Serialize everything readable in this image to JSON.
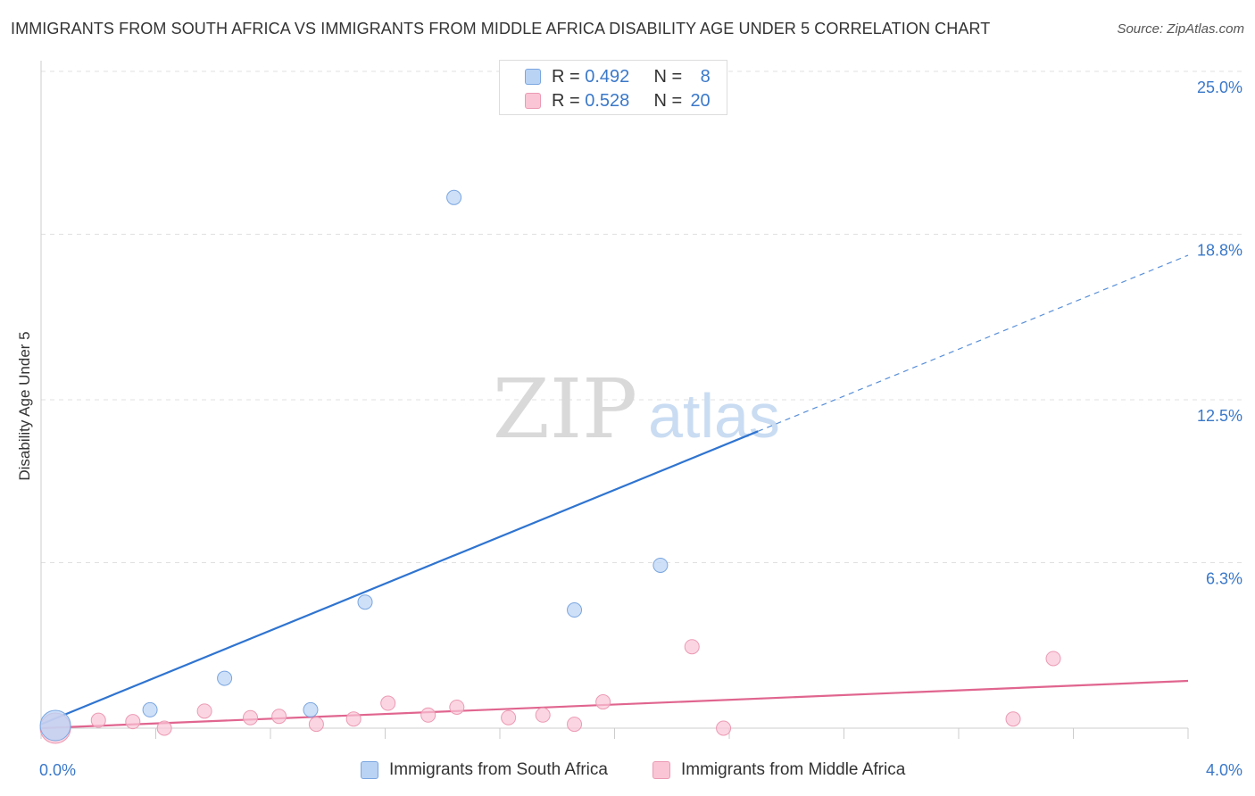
{
  "title": "IMMIGRANTS FROM SOUTH AFRICA VS IMMIGRANTS FROM MIDDLE AFRICA DISABILITY AGE UNDER 5 CORRELATION CHART",
  "source": "Source: ZipAtlas.com",
  "watermark": {
    "zip": "ZIP",
    "atlas": "atlas"
  },
  "legend": {
    "rows": [
      {
        "r_label": "R = ",
        "r_value": "0.492",
        "n_label": "N = ",
        "n_value": "8"
      },
      {
        "r_label": "R = ",
        "r_value": "0.528",
        "n_label": "N = ",
        "n_value": "20"
      }
    ]
  },
  "chart_data": {
    "type": "scatter",
    "title": "IMMIGRANTS FROM SOUTH AFRICA VS IMMIGRANTS FROM MIDDLE AFRICA DISABILITY AGE UNDER 5 CORRELATION CHART",
    "xlabel": "",
    "ylabel": "Disability Age Under 5",
    "xlim": [
      0,
      4.0
    ],
    "ylim": [
      0,
      25.0
    ],
    "x_tick_labels": [
      "0.0%",
      "4.0%"
    ],
    "y_ticks": [
      6.3,
      12.5,
      18.8,
      25.0
    ],
    "y_tick_labels": [
      "6.3%",
      "12.5%",
      "18.8%",
      "25.0%"
    ],
    "grid": true,
    "colors": {
      "south_africa_fill": "#b9d3f5",
      "south_africa_stroke": "#7aa6e0",
      "south_africa_line": "#2f74d0",
      "middle_africa_fill": "#fac5d5",
      "middle_africa_stroke": "#ec9ab4",
      "middle_africa_line": "#e0658f",
      "axis_label": "#3a78c9",
      "grid": "#e0e0e0"
    },
    "series": [
      {
        "name": "Immigrants from South Africa",
        "r": 0.492,
        "n": 8,
        "points": [
          {
            "x": 0.05,
            "y": 0.1,
            "big": true
          },
          {
            "x": 0.38,
            "y": 0.7
          },
          {
            "x": 0.64,
            "y": 1.9
          },
          {
            "x": 0.94,
            "y": 0.7
          },
          {
            "x": 1.13,
            "y": 4.8
          },
          {
            "x": 1.44,
            "y": 20.2
          },
          {
            "x": 1.86,
            "y": 4.5
          },
          {
            "x": 2.16,
            "y": 6.2
          }
        ],
        "trend": {
          "x0": 0.0,
          "y0": 0.15,
          "x1": 2.5,
          "y1": 11.3,
          "x_dash_end": 4.0,
          "y_dash_end": 18.0
        }
      },
      {
        "name": "Immigrants from Middle Africa",
        "r": 0.528,
        "n": 20,
        "points": [
          {
            "x": 0.05,
            "y": 0.0,
            "big": true
          },
          {
            "x": 0.2,
            "y": 0.3
          },
          {
            "x": 0.32,
            "y": 0.25
          },
          {
            "x": 0.43,
            "y": 0.0
          },
          {
            "x": 0.57,
            "y": 0.65
          },
          {
            "x": 0.73,
            "y": 0.4
          },
          {
            "x": 0.83,
            "y": 0.45
          },
          {
            "x": 0.96,
            "y": 0.15
          },
          {
            "x": 1.09,
            "y": 0.35
          },
          {
            "x": 1.21,
            "y": 0.95
          },
          {
            "x": 1.35,
            "y": 0.5
          },
          {
            "x": 1.45,
            "y": 0.8
          },
          {
            "x": 1.63,
            "y": 0.4
          },
          {
            "x": 1.75,
            "y": 0.5
          },
          {
            "x": 1.86,
            "y": 0.15
          },
          {
            "x": 1.96,
            "y": 1.0
          },
          {
            "x": 2.27,
            "y": 3.1
          },
          {
            "x": 2.38,
            "y": 0.0
          },
          {
            "x": 3.39,
            "y": 0.35
          },
          {
            "x": 3.53,
            "y": 2.65
          }
        ],
        "trend": {
          "x0": 0.0,
          "y0": 0.0,
          "x1": 4.0,
          "y1": 1.8
        }
      }
    ]
  },
  "bottom_legend": {
    "south_africa": "Immigrants from South Africa",
    "middle_africa": "Immigrants from Middle Africa"
  }
}
